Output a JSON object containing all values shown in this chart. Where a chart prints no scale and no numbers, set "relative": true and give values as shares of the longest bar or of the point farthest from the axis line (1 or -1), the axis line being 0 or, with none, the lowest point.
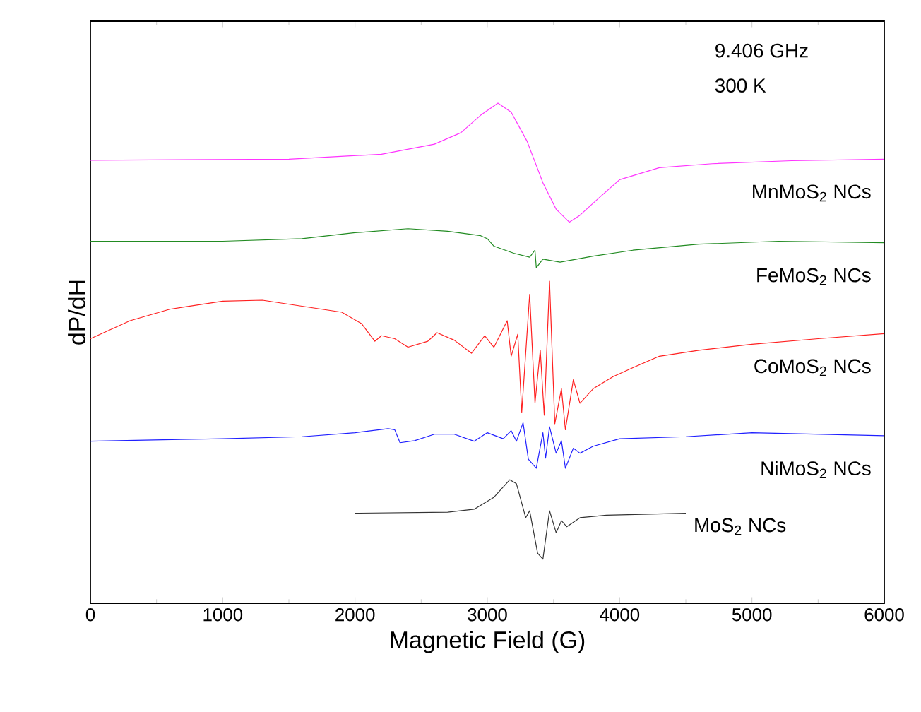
{
  "chart_data": {
    "type": "line",
    "xlabel": "Magnetic Field (G)",
    "ylabel": "dP/dH",
    "xlim": [
      0,
      6000
    ],
    "xticks": [
      0,
      1000,
      2000,
      3000,
      4000,
      5000,
      6000
    ],
    "relative": true,
    "annotations": [
      "9.406 GHz",
      "300 K"
    ],
    "series": [
      {
        "name": "MnMoS$_{2}$ NCs",
        "color": "#ff33ff",
        "x": [
          0,
          1500,
          2200,
          2600,
          2800,
          2950,
          3080,
          3180,
          3300,
          3420,
          3520,
          3620,
          3700,
          3850,
          4000,
          4300,
          4700,
          5300,
          6000
        ],
        "values": [
          0.886,
          0.888,
          0.898,
          0.918,
          0.941,
          0.976,
          1.0,
          0.982,
          0.924,
          0.841,
          0.788,
          0.762,
          0.776,
          0.812,
          0.847,
          0.871,
          0.879,
          0.885,
          0.888
        ]
      },
      {
        "name": "FeMoS$_{2}$ NCs",
        "color": "#228b22",
        "x": [
          0,
          1000,
          1600,
          2000,
          2400,
          2700,
          2950,
          3000,
          3050,
          3200,
          3320,
          3360,
          3370,
          3420,
          3550,
          3800,
          4100,
          4600,
          5200,
          6000
        ],
        "values": [
          0.724,
          0.724,
          0.729,
          0.741,
          0.749,
          0.744,
          0.735,
          0.729,
          0.714,
          0.7,
          0.692,
          0.706,
          0.671,
          0.688,
          0.682,
          0.694,
          0.706,
          0.718,
          0.724,
          0.721
        ]
      },
      {
        "name": "CoMoS$_{2}$ NCs",
        "color": "#ff2020",
        "x": [
          0,
          300,
          600,
          1000,
          1300,
          1600,
          1900,
          2050,
          2150,
          2200,
          2300,
          2400,
          2550,
          2620,
          2750,
          2880,
          2980,
          3050,
          3150,
          3180,
          3230,
          3260,
          3320,
          3360,
          3400,
          3430,
          3470,
          3510,
          3560,
          3590,
          3650,
          3700,
          3800,
          3950,
          4100,
          4300,
          4600,
          5000,
          5500,
          6000
        ],
        "values": [
          0.529,
          0.565,
          0.588,
          0.604,
          0.606,
          0.594,
          0.582,
          0.559,
          0.524,
          0.535,
          0.529,
          0.512,
          0.524,
          0.541,
          0.526,
          0.5,
          0.535,
          0.512,
          0.565,
          0.494,
          0.538,
          0.382,
          0.618,
          0.4,
          0.506,
          0.376,
          0.644,
          0.359,
          0.429,
          0.347,
          0.447,
          0.4,
          0.429,
          0.453,
          0.471,
          0.494,
          0.506,
          0.518,
          0.529,
          0.539
        ]
      },
      {
        "name": "NiMoS$_{2}$ NCs",
        "color": "#2020ff",
        "x": [
          0,
          1000,
          1600,
          2000,
          2250,
          2300,
          2340,
          2450,
          2600,
          2750,
          2900,
          3000,
          3120,
          3180,
          3220,
          3270,
          3310,
          3370,
          3420,
          3440,
          3470,
          3520,
          3560,
          3590,
          3650,
          3700,
          3800,
          4000,
          4500,
          5000,
          6000
        ],
        "values": [
          0.324,
          0.329,
          0.333,
          0.341,
          0.349,
          0.347,
          0.321,
          0.325,
          0.338,
          0.338,
          0.324,
          0.341,
          0.329,
          0.345,
          0.324,
          0.361,
          0.288,
          0.27,
          0.341,
          0.29,
          0.353,
          0.3,
          0.325,
          0.27,
          0.31,
          0.3,
          0.314,
          0.329,
          0.333,
          0.341,
          0.335
        ]
      },
      {
        "name": "MoS$_{2}$ NCs",
        "color": "#333333",
        "x": [
          2000,
          2700,
          2900,
          3050,
          3170,
          3220,
          3290,
          3320,
          3380,
          3420,
          3470,
          3520,
          3560,
          3600,
          3700,
          3900,
          4500
        ],
        "values": [
          0.18,
          0.182,
          0.188,
          0.212,
          0.247,
          0.239,
          0.171,
          0.185,
          0.1,
          0.088,
          0.185,
          0.141,
          0.165,
          0.153,
          0.171,
          0.176,
          0.18
        ]
      }
    ]
  }
}
